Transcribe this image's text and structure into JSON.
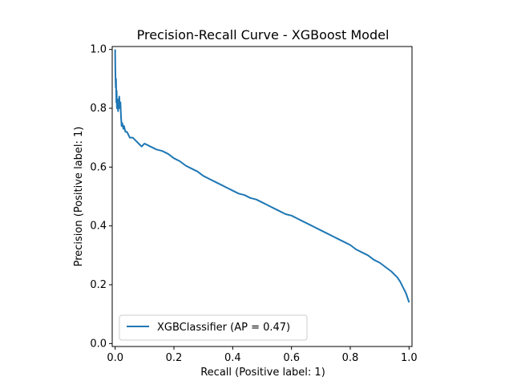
{
  "chart_data": {
    "type": "line",
    "title": "Precision-Recall Curve - XGBoost Model",
    "xlabel": "Recall (Positive label: 1)",
    "ylabel": "Precision (Positive label: 1)",
    "xlim": [
      -0.01,
      1.01
    ],
    "ylim": [
      -0.01,
      1.01
    ],
    "x_ticks": [
      "0.0",
      "0.2",
      "0.4",
      "0.6",
      "0.8",
      "1.0"
    ],
    "y_ticks": [
      "0.0",
      "0.2",
      "0.4",
      "0.6",
      "0.8",
      "1.0"
    ],
    "grid": false,
    "legend_position": "lower-left",
    "series": [
      {
        "name": "XGBClassifier (AP = 0.47)",
        "color": "#1f77b4",
        "x": [
          0.0,
          0.0,
          0.001,
          0.002,
          0.003,
          0.004,
          0.005,
          0.006,
          0.008,
          0.01,
          0.012,
          0.014,
          0.016,
          0.018,
          0.02,
          0.022,
          0.024,
          0.028,
          0.03,
          0.035,
          0.04,
          0.05,
          0.06,
          0.07,
          0.08,
          0.09,
          0.1,
          0.12,
          0.14,
          0.16,
          0.18,
          0.2,
          0.22,
          0.24,
          0.26,
          0.28,
          0.3,
          0.32,
          0.34,
          0.36,
          0.38,
          0.4,
          0.42,
          0.44,
          0.46,
          0.48,
          0.5,
          0.52,
          0.54,
          0.56,
          0.58,
          0.6,
          0.62,
          0.64,
          0.66,
          0.68,
          0.7,
          0.72,
          0.74,
          0.76,
          0.78,
          0.8,
          0.82,
          0.84,
          0.86,
          0.88,
          0.9,
          0.92,
          0.94,
          0.95,
          0.96,
          0.97,
          0.98,
          0.99,
          0.995,
          1.0
        ],
        "y": [
          1.0,
          0.98,
          0.91,
          0.87,
          0.9,
          0.82,
          0.86,
          0.8,
          0.83,
          0.79,
          0.82,
          0.84,
          0.8,
          0.82,
          0.77,
          0.74,
          0.75,
          0.73,
          0.74,
          0.72,
          0.72,
          0.7,
          0.7,
          0.69,
          0.68,
          0.67,
          0.68,
          0.67,
          0.66,
          0.655,
          0.645,
          0.63,
          0.62,
          0.605,
          0.595,
          0.585,
          0.57,
          0.56,
          0.55,
          0.54,
          0.53,
          0.52,
          0.51,
          0.505,
          0.495,
          0.49,
          0.48,
          0.47,
          0.46,
          0.45,
          0.44,
          0.435,
          0.425,
          0.415,
          0.405,
          0.395,
          0.385,
          0.375,
          0.365,
          0.355,
          0.345,
          0.335,
          0.32,
          0.31,
          0.3,
          0.285,
          0.275,
          0.26,
          0.245,
          0.235,
          0.225,
          0.21,
          0.19,
          0.17,
          0.155,
          0.14
        ]
      }
    ]
  }
}
